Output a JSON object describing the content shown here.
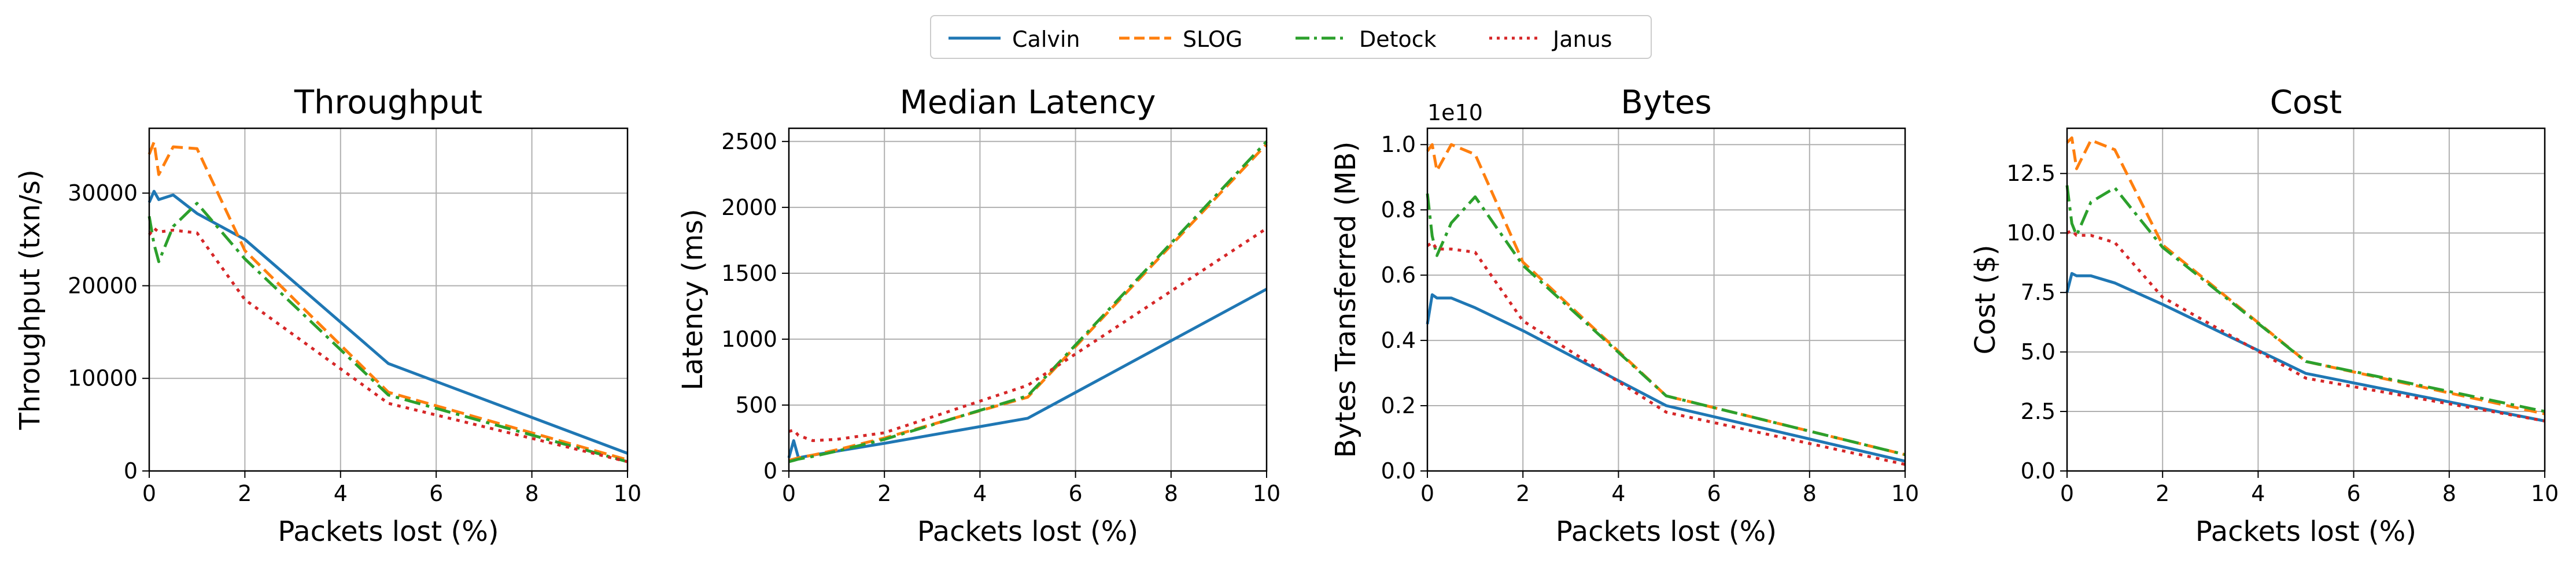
{
  "legend": {
    "placement": "top-center",
    "entries": [
      {
        "name": "Calvin",
        "color": "#1f77b4",
        "style": "solid"
      },
      {
        "name": "SLOG",
        "color": "#ff7f0e",
        "style": "dashed"
      },
      {
        "name": "Detock",
        "color": "#2ca02c",
        "style": "dashdot"
      },
      {
        "name": "Janus",
        "color": "#d62728",
        "style": "dotted"
      }
    ]
  },
  "chart_data": [
    {
      "type": "line",
      "title": "Throughput",
      "xlabel": "Packets lost (%)",
      "ylabel": "Throughput (txn/s)",
      "xlim": [
        0,
        10
      ],
      "ylim": [
        0,
        37000
      ],
      "xticks": [
        "0",
        "2",
        "4",
        "6",
        "8",
        "10"
      ],
      "yticks": [
        "0",
        "10000",
        "20000",
        "30000"
      ],
      "ytick_values": [
        0,
        10000,
        20000,
        30000
      ],
      "grid": true,
      "series": [
        {
          "name": "Calvin",
          "x": [
            0,
            0.1,
            0.2,
            0.5,
            1,
            2,
            5,
            10
          ],
          "y": [
            29000,
            30200,
            29300,
            29800,
            27800,
            25000,
            11600,
            1900
          ]
        },
        {
          "name": "SLOG",
          "x": [
            0,
            0.1,
            0.2,
            0.5,
            1,
            2,
            5,
            10
          ],
          "y": [
            34200,
            35500,
            32000,
            35000,
            34800,
            23800,
            8500,
            1200
          ]
        },
        {
          "name": "Detock",
          "x": [
            0,
            0.1,
            0.2,
            0.5,
            1,
            2,
            5,
            10
          ],
          "y": [
            27500,
            24500,
            22600,
            26400,
            28900,
            22900,
            8200,
            1000
          ]
        },
        {
          "name": "Janus",
          "x": [
            0,
            0.1,
            0.2,
            0.5,
            1,
            2,
            5,
            10
          ],
          "y": [
            25500,
            26200,
            25800,
            26000,
            25700,
            18500,
            7300,
            1000
          ]
        }
      ]
    },
    {
      "type": "line",
      "title": "Median Latency",
      "xlabel": "Packets lost (%)",
      "ylabel": "Latency (ms)",
      "xlim": [
        0,
        10
      ],
      "ylim": [
        0,
        2600
      ],
      "xticks": [
        "0",
        "2",
        "4",
        "6",
        "8",
        "10"
      ],
      "yticks": [
        "0",
        "500",
        "1000",
        "1500",
        "2000",
        "2500"
      ],
      "ytick_values": [
        0,
        500,
        1000,
        1500,
        2000,
        2500
      ],
      "grid": true,
      "series": [
        {
          "name": "Calvin",
          "x": [
            0,
            0.1,
            0.2,
            0.5,
            1,
            2,
            5,
            10
          ],
          "y": [
            100,
            230,
            100,
            120,
            150,
            210,
            400,
            1380
          ]
        },
        {
          "name": "SLOG",
          "x": [
            0,
            0.1,
            0.2,
            0.5,
            1,
            2,
            5,
            10
          ],
          "y": [
            80,
            90,
            100,
            120,
            160,
            250,
            560,
            2480
          ]
        },
        {
          "name": "Detock",
          "x": [
            0,
            0.1,
            0.2,
            0.5,
            1,
            2,
            5,
            10
          ],
          "y": [
            70,
            80,
            90,
            110,
            150,
            240,
            570,
            2500
          ]
        },
        {
          "name": "Janus",
          "x": [
            0,
            0.1,
            0.2,
            0.5,
            1,
            2,
            5,
            10
          ],
          "y": [
            300,
            310,
            270,
            230,
            240,
            290,
            650,
            1840
          ]
        }
      ]
    },
    {
      "type": "line",
      "title": "Bytes",
      "xlabel": "Packets lost (%)",
      "ylabel": "Bytes Transferred (MB)",
      "offset_label": "1e10",
      "xlim": [
        0,
        10
      ],
      "ylim": [
        0,
        1.05
      ],
      "xticks": [
        "0",
        "2",
        "4",
        "6",
        "8",
        "10"
      ],
      "yticks": [
        "0.0",
        "0.2",
        "0.4",
        "0.6",
        "0.8",
        "1.0"
      ],
      "ytick_values": [
        0,
        0.2,
        0.4,
        0.6,
        0.8,
        1.0
      ],
      "grid": true,
      "series": [
        {
          "name": "Calvin",
          "x": [
            0,
            0.1,
            0.2,
            0.5,
            1,
            2,
            5,
            10
          ],
          "y": [
            0.45,
            0.54,
            0.53,
            0.53,
            0.5,
            0.43,
            0.2,
            0.03
          ]
        },
        {
          "name": "SLOG",
          "x": [
            0,
            0.1,
            0.2,
            0.5,
            1,
            2,
            5,
            10
          ],
          "y": [
            0.98,
            1.0,
            0.92,
            1.0,
            0.97,
            0.64,
            0.23,
            0.05
          ]
        },
        {
          "name": "Detock",
          "x": [
            0,
            0.1,
            0.2,
            0.5,
            1,
            2,
            5,
            10
          ],
          "y": [
            0.85,
            0.72,
            0.66,
            0.76,
            0.84,
            0.63,
            0.23,
            0.05
          ]
        },
        {
          "name": "Janus",
          "x": [
            0,
            0.1,
            0.2,
            0.5,
            1,
            2,
            5,
            10
          ],
          "y": [
            0.69,
            0.7,
            0.68,
            0.68,
            0.67,
            0.46,
            0.18,
            0.02
          ]
        }
      ]
    },
    {
      "type": "line",
      "title": "Cost",
      "xlabel": "Packets lost (%)",
      "ylabel": "Cost ($)",
      "xlim": [
        0,
        10
      ],
      "ylim": [
        0,
        14.4
      ],
      "xticks": [
        "0",
        "2",
        "4",
        "6",
        "8",
        "10"
      ],
      "yticks": [
        "0.0",
        "2.5",
        "5.0",
        "7.5",
        "10.0",
        "12.5"
      ],
      "ytick_values": [
        0,
        2.5,
        5.0,
        7.5,
        10.0,
        12.5
      ],
      "grid": true,
      "series": [
        {
          "name": "Calvin",
          "x": [
            0,
            0.1,
            0.2,
            0.5,
            1,
            2,
            5,
            10
          ],
          "y": [
            7.5,
            8.3,
            8.2,
            8.2,
            7.9,
            7.0,
            4.1,
            2.1
          ]
        },
        {
          "name": "SLOG",
          "x": [
            0,
            0.1,
            0.2,
            0.5,
            1,
            2,
            5,
            10
          ],
          "y": [
            13.8,
            14.0,
            12.7,
            13.9,
            13.5,
            9.5,
            4.6,
            2.4
          ]
        },
        {
          "name": "Detock",
          "x": [
            0,
            0.1,
            0.2,
            0.5,
            1,
            2,
            5,
            10
          ],
          "y": [
            12.0,
            10.4,
            9.9,
            11.3,
            11.9,
            9.4,
            4.6,
            2.5
          ]
        },
        {
          "name": "Janus",
          "x": [
            0,
            0.1,
            0.2,
            0.5,
            1,
            2,
            5,
            10
          ],
          "y": [
            10.0,
            10.1,
            9.9,
            9.9,
            9.6,
            7.3,
            3.9,
            2.1
          ]
        }
      ]
    }
  ]
}
